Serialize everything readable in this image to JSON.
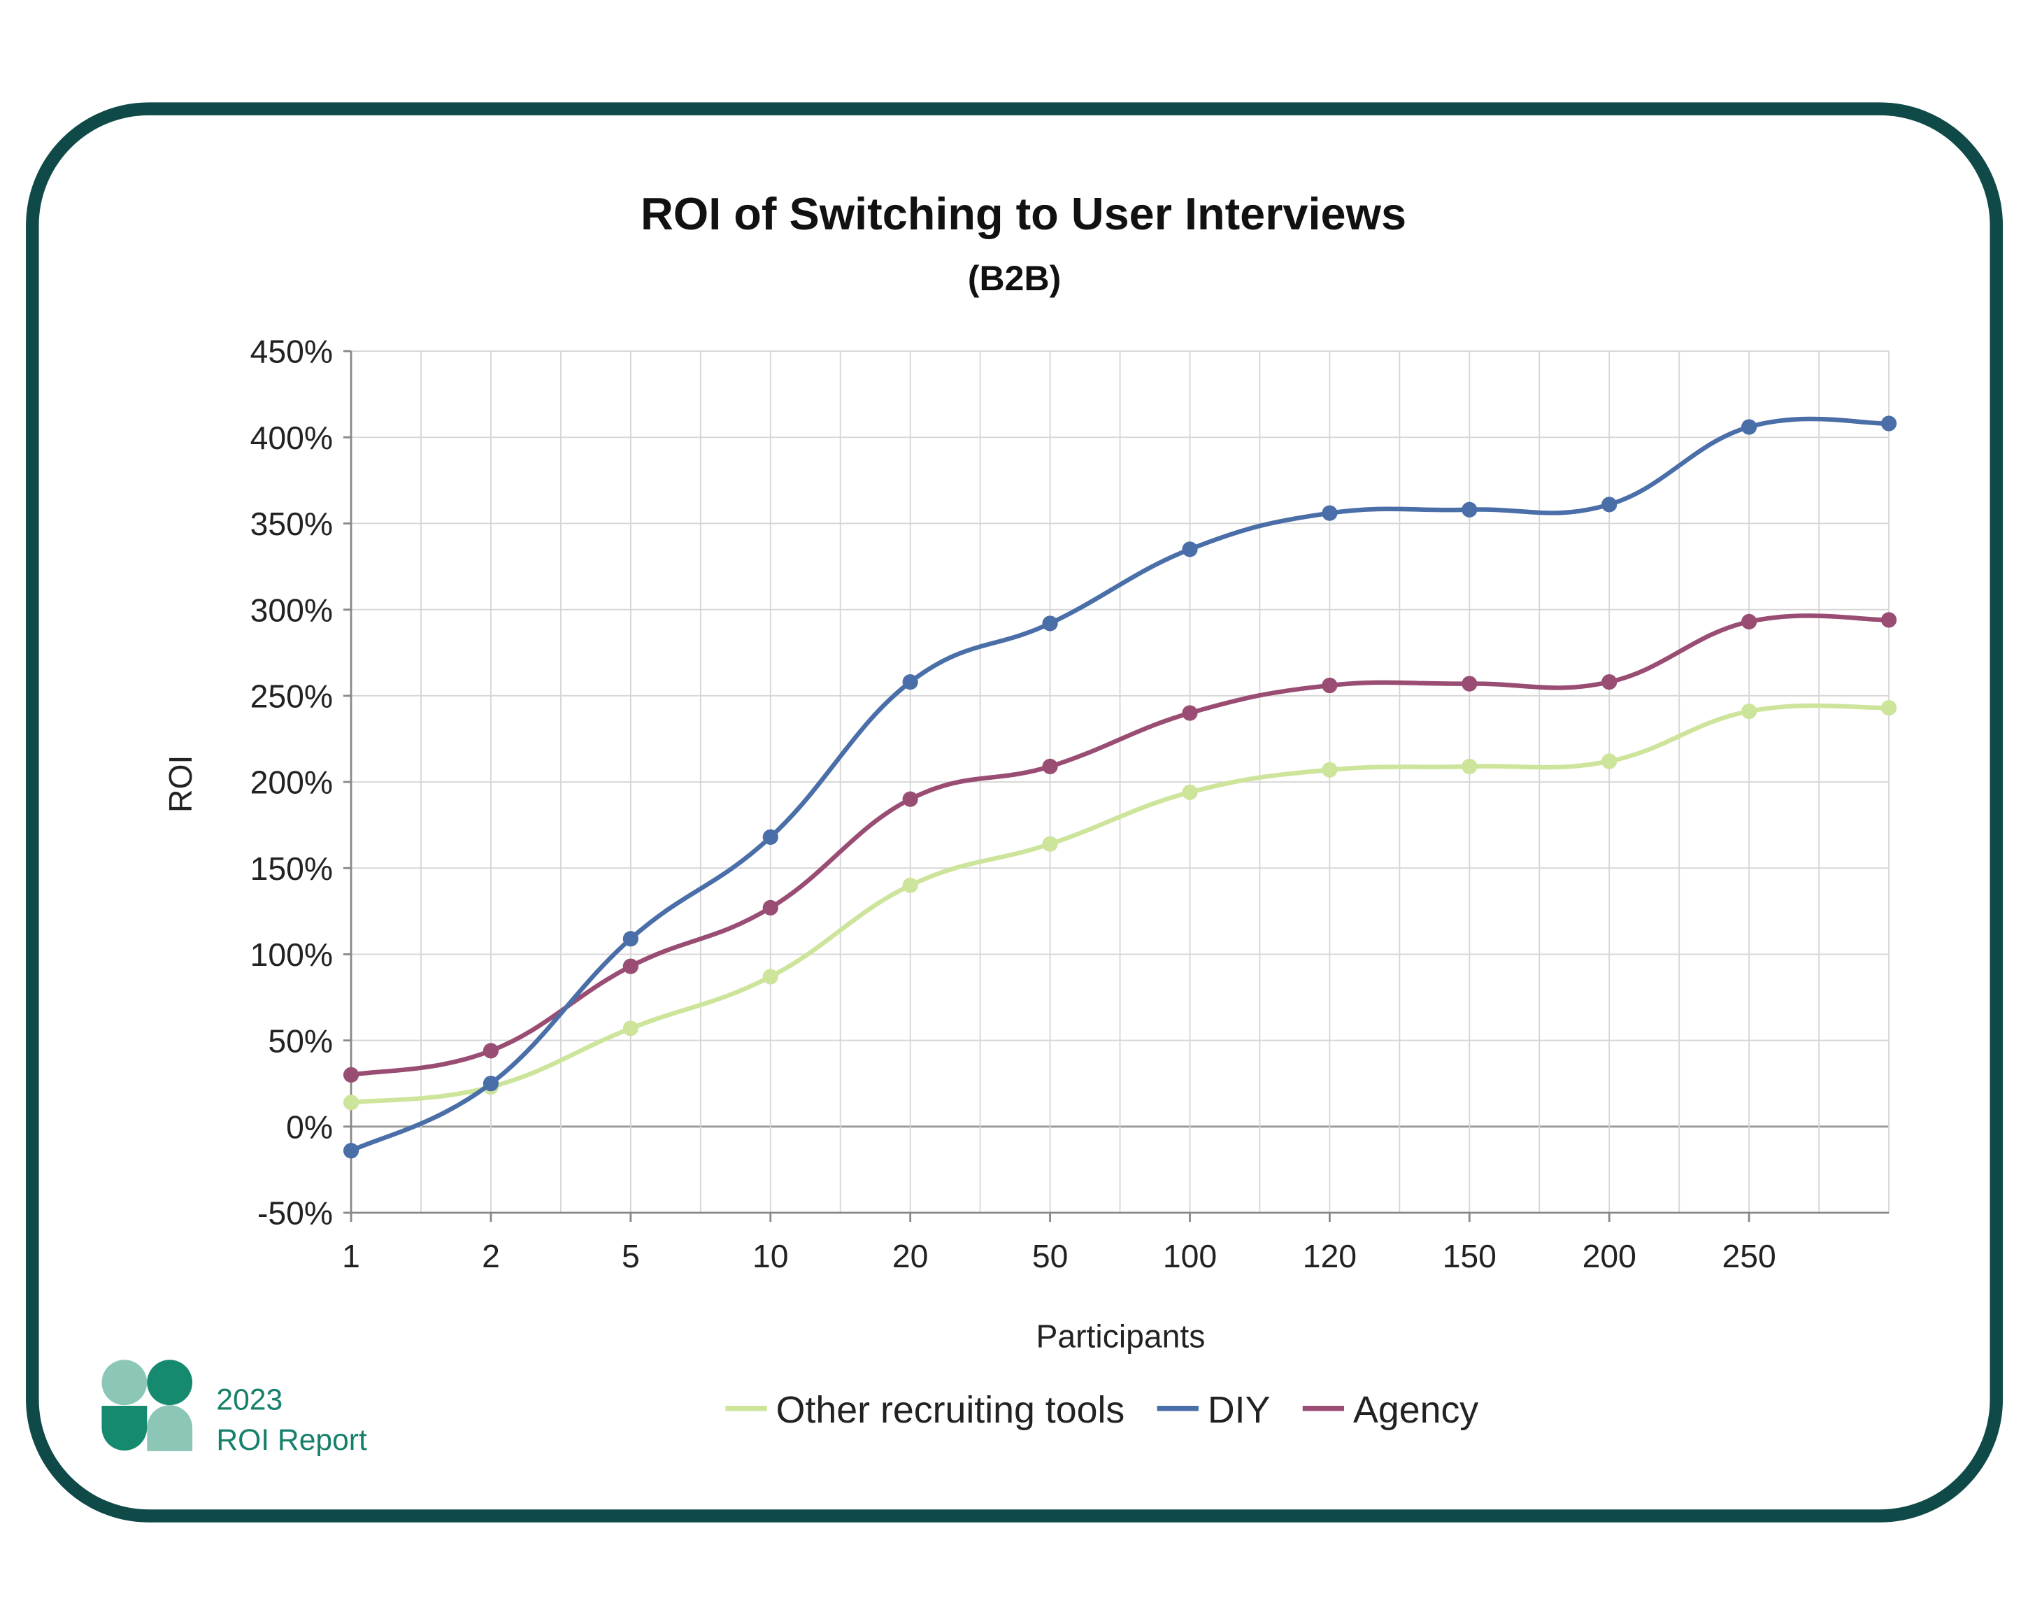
{
  "chart_data": {
    "type": "line",
    "title": "ROI of Switching to User Interviews",
    "subtitle": "(B2B)",
    "xlabel": "Participants",
    "ylabel": "ROI",
    "categories": [
      "1",
      "2",
      "5",
      "10",
      "20",
      "50",
      "100",
      "120",
      "150",
      "200",
      "250",
      ""
    ],
    "ylim": [
      -50,
      450
    ],
    "yticks": [
      "-50%",
      "0%",
      "50%",
      "100%",
      "150%",
      "200%",
      "250%",
      "300%",
      "350%",
      "400%",
      "450%"
    ],
    "grid": true,
    "smooth": true,
    "legend_position": "bottom",
    "series": [
      {
        "name": "Other recruiting tools",
        "color": "#cde49b",
        "values": [
          14,
          23,
          57,
          87,
          140,
          164,
          194,
          207,
          209,
          212,
          241,
          243
        ]
      },
      {
        "name": "DIY",
        "color": "#4a6ea8",
        "values": [
          -14,
          25,
          109,
          168,
          258,
          292,
          335,
          356,
          358,
          361,
          406,
          408
        ]
      },
      {
        "name": "Agency",
        "color": "#9a4d73",
        "values": [
          30,
          44,
          93,
          127,
          190,
          209,
          240,
          256,
          257,
          258,
          293,
          294
        ]
      }
    ]
  },
  "branding": {
    "year": "2023",
    "report": "ROI Report",
    "frame_color": "#0f4a48",
    "logo_colors": [
      "#8cc6b6",
      "#168a6e"
    ]
  }
}
